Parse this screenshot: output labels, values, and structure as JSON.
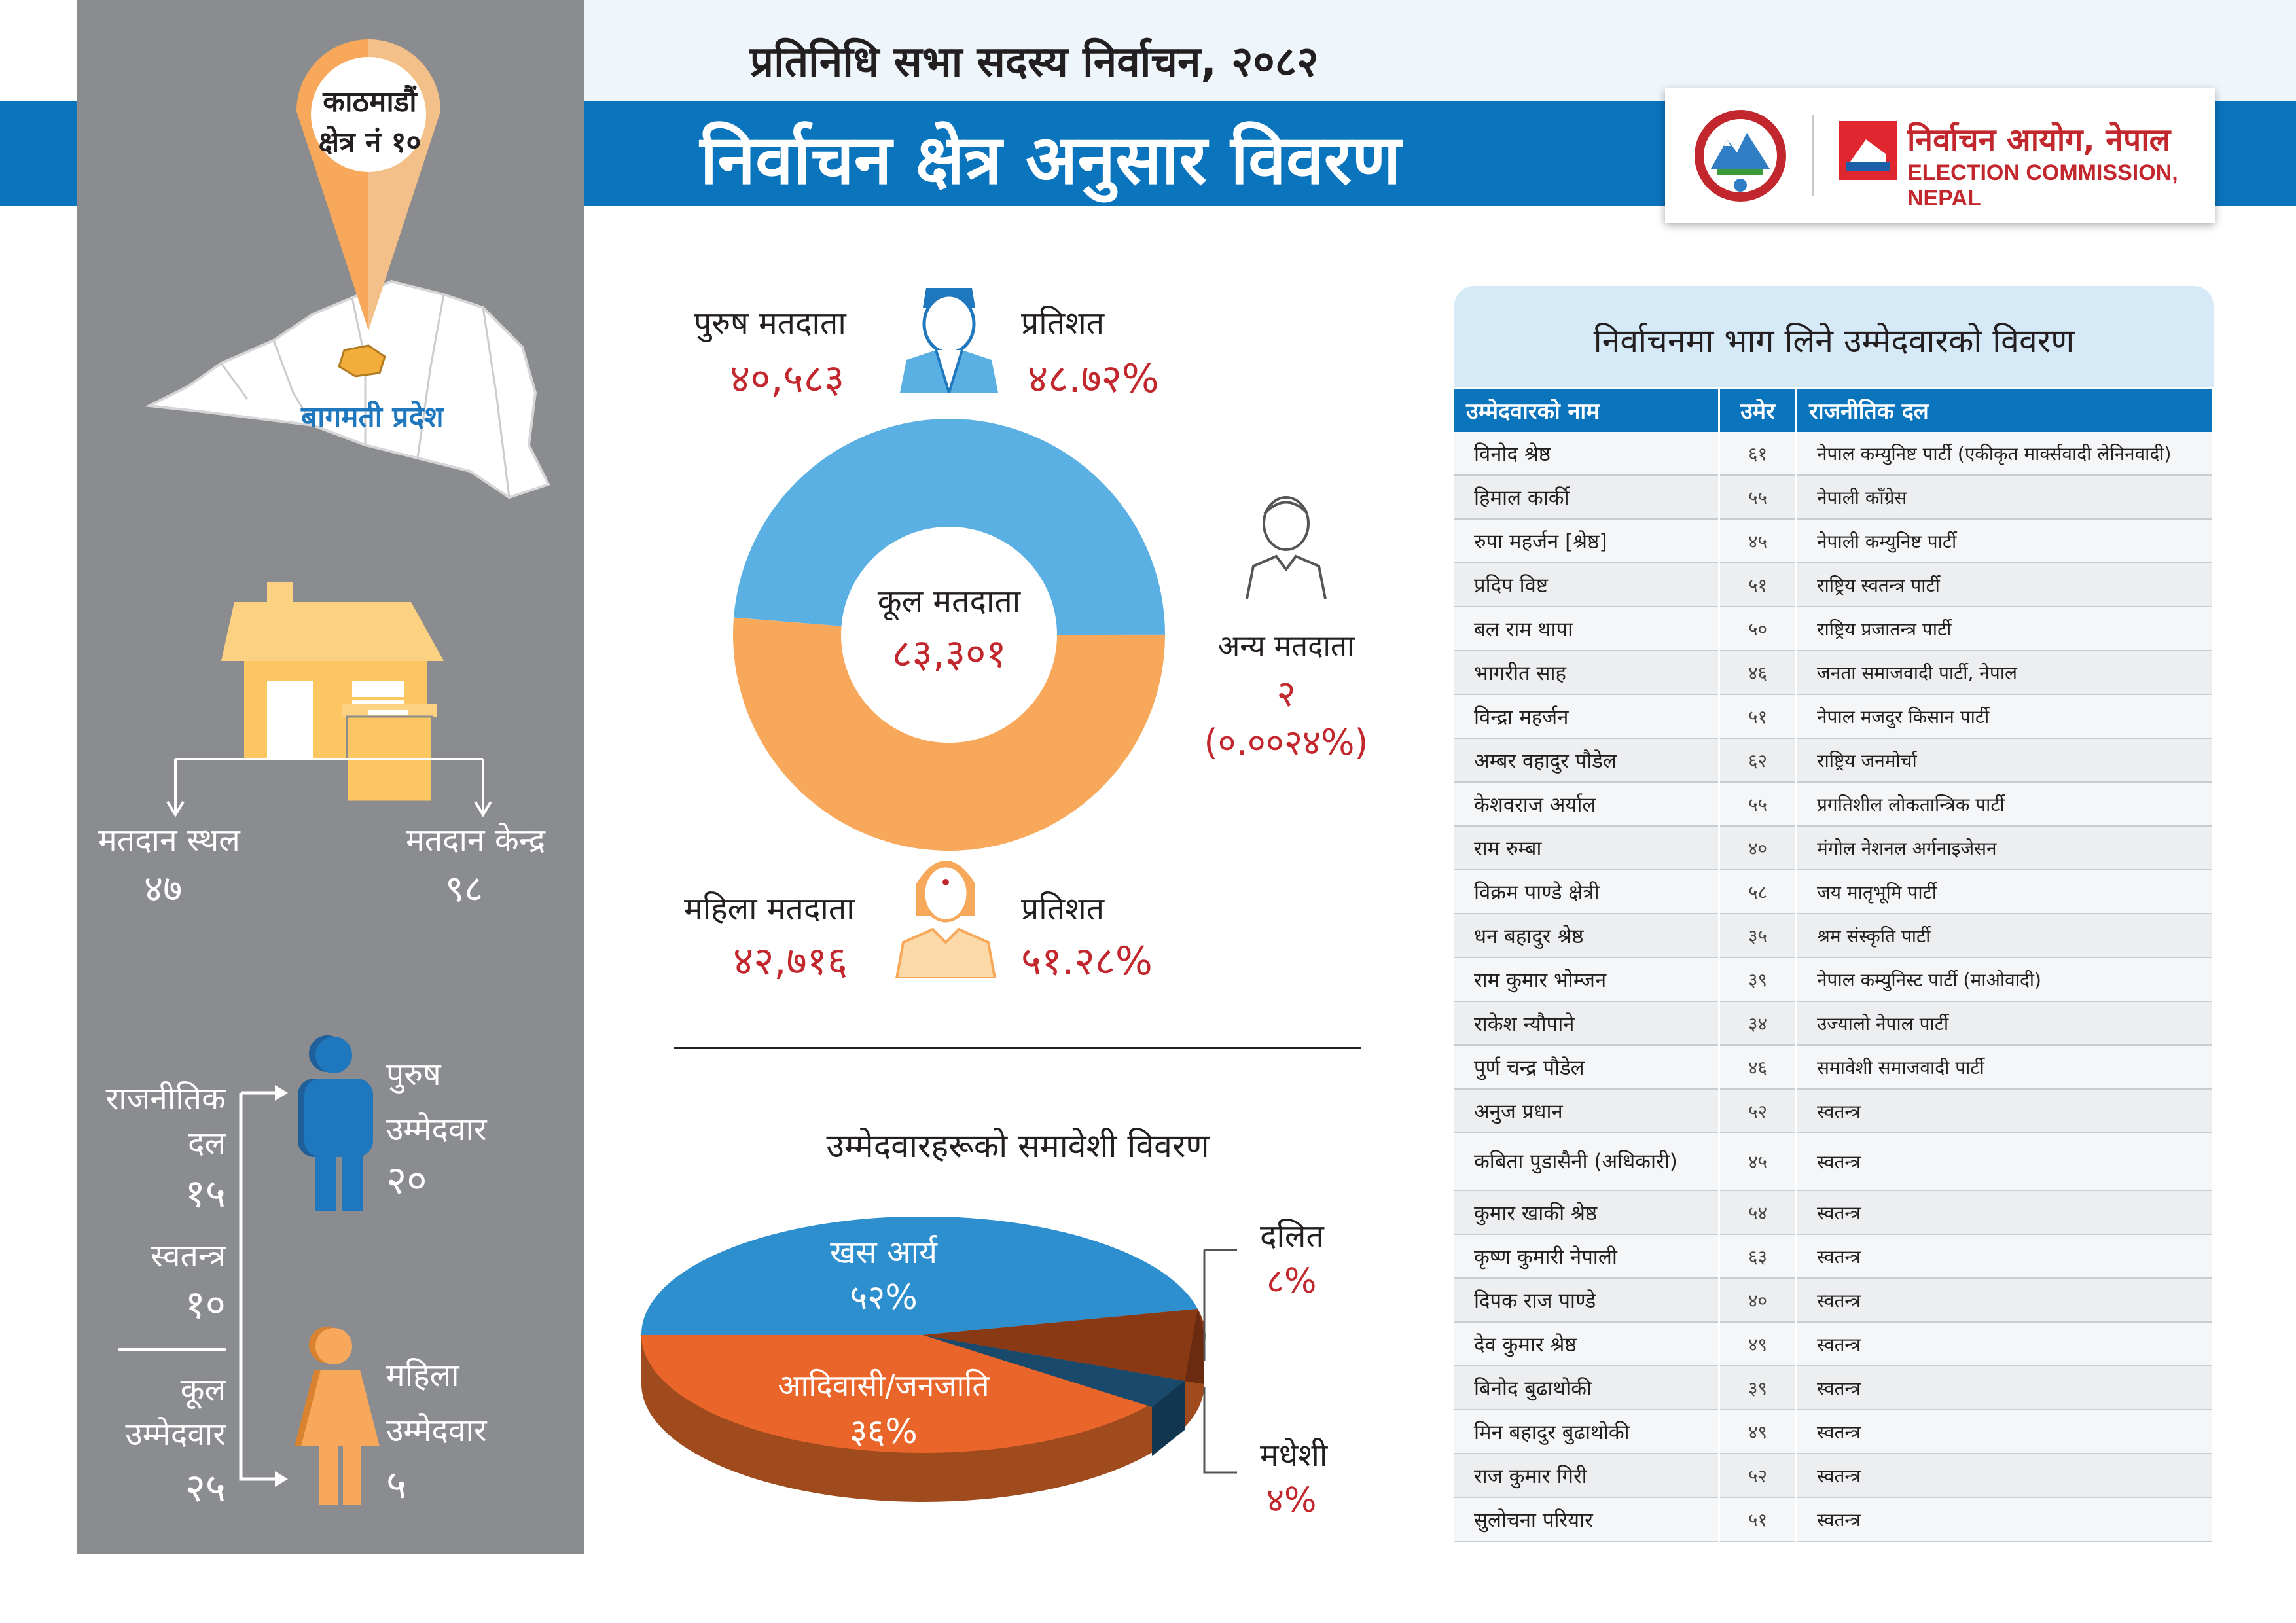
{
  "header": {
    "subtitle": "प्रतिनिधि सभा सदस्य निर्वाचन, २०८२",
    "title": "निर्वाचन क्षेत्र अनुसार विवरण",
    "org_nepali": "निर्वाचन आयोग, नेपाल",
    "org_english": "ELECTION COMMISSION, NEPAL"
  },
  "colors": {
    "blue": "#0a74bd",
    "light_blue": "#5aafe3",
    "orange": "#f7a85a",
    "grey": "#8a8c8f",
    "red_text": "#c2272d"
  },
  "constituency": {
    "line1": "काठमाडौं",
    "line2": "क्षेत्र नं १०",
    "province": "बागमती प्रदेश"
  },
  "polling": {
    "stations_label": "मतदान स्थल",
    "stations_value": "४७",
    "centers_label": "मतदान केन्द्र",
    "centers_value": "९८"
  },
  "candidates_summary": {
    "parties_label_1": "राजनीतिक",
    "parties_label_2": "दल",
    "parties_value": "१५",
    "independent_label": "स्वतन्त्र",
    "independent_value": "१०",
    "total_label_1": "कूल",
    "total_label_2": "उम्मेदवार",
    "total_value": "२५",
    "male_label_1": "पुरुष",
    "male_label_2": "उम्मेदवार",
    "male_value": "२०",
    "female_label_1": "महिला",
    "female_label_2": "उम्मेदवार",
    "female_value": "५"
  },
  "voters": {
    "male_label": "पुरुष मतदाता",
    "male_value": "४०,५८३",
    "male_pct_label": "प्रतिशत",
    "male_pct": "४८.७२%",
    "female_label": "महिला मतदाता",
    "female_value": "४२,७१६",
    "female_pct_label": "प्रतिशत",
    "female_pct": "५१.२८%",
    "total_label": "कूल मतदाता",
    "total_value": "८३,३०१",
    "other_label": "अन्य मतदाता",
    "other_value": "२",
    "other_pct": "(०.००२४%)"
  },
  "inclusion": {
    "title": "उम्मेदवारहरूको समावेशी विवरण",
    "khas_label": "खस आर्य",
    "khas_pct": "५२%",
    "janajati_label": "आदिवासी/जनजाति",
    "janajati_pct": "३६%",
    "dalit_label": "दलित",
    "dalit_pct": "८%",
    "madhesi_label": "मधेशी",
    "madhesi_pct": "४%"
  },
  "chart_data": [
    {
      "type": "pie",
      "categories": [
        "पुरुष मतदाता",
        "महिला मतदाता",
        "अन्य मतदाता"
      ],
      "values": [
        48.72,
        51.28,
        0.0024
      ]
    },
    {
      "type": "pie",
      "categories": [
        "खस आर्य",
        "आदिवासी/जनजाति",
        "दलित",
        "मधेशी"
      ],
      "values": [
        52,
        36,
        8,
        4
      ]
    }
  ],
  "candidate_table": {
    "title": "निर्वाचनमा भाग लिने उम्मेदवारको विवरण",
    "headers": [
      "उम्मेदवारको नाम",
      "उमेर",
      "राजनीतिक दल"
    ],
    "rows": [
      {
        "name": "विनोद श्रेष्ठ",
        "age": "६१",
        "party": "नेपाल कम्युनिष्ट पार्टी (एकीकृत मार्क्सवादी लेनिनवादी)"
      },
      {
        "name": "हिमाल कार्की",
        "age": "५५",
        "party": "नेपाली काँग्रेस"
      },
      {
        "name": "रुपा महर्जन [श्रेष्ठ]",
        "age": "४५",
        "party": "नेपाली कम्युनिष्ट पार्टी"
      },
      {
        "name": "प्रदिप विष्ट",
        "age": "५१",
        "party": "राष्ट्रिय स्वतन्त्र पार्टी"
      },
      {
        "name": "बल राम थापा",
        "age": "५०",
        "party": "राष्ट्रिय प्रजातन्त्र पार्टी"
      },
      {
        "name": "भागरीत साह",
        "age": "४६",
        "party": "जनता समाजवादी पार्टी, नेपाल"
      },
      {
        "name": "विन्द्रा महर्जन",
        "age": "५१",
        "party": "नेपाल मजदुर किसान पार्टी"
      },
      {
        "name": "अम्बर वहादुर पौडेल",
        "age": "६२",
        "party": "राष्ट्रिय जनमोर्चा"
      },
      {
        "name": "केशवराज अर्याल",
        "age": "५५",
        "party": "प्रगतिशील लोकतान्त्रिक पार्टी"
      },
      {
        "name": "राम रुम्बा",
        "age": "४०",
        "party": "मंगोल नेशनल अर्गनाइजेसन"
      },
      {
        "name": "विक्रम पाण्डे क्षेत्री",
        "age": "५८",
        "party": "जय मातृभूमि पार्टी"
      },
      {
        "name": "धन बहादुर श्रेष्ठ",
        "age": "३५",
        "party": "श्रम संस्कृति पार्टी"
      },
      {
        "name": "राम कुमार भोम्जन",
        "age": "३९",
        "party": "नेपाल कम्युनिस्ट पार्टी (माओवादी)"
      },
      {
        "name": "राकेश न्यौपाने",
        "age": "३४",
        "party": "उज्यालो नेपाल पार्टी"
      },
      {
        "name": "पुर्ण चन्द्र पौडेल",
        "age": "४६",
        "party": "समावेशी समाजवादी पार्टी"
      },
      {
        "name": "अनुज प्रधान",
        "age": "५२",
        "party": "स्वतन्त्र"
      },
      {
        "name": "कबिता पुडासैनी (अधिकारी)",
        "age": "४५",
        "party": "स्वतन्त्र"
      },
      {
        "name": "कुमार खाकी श्रेष्ठ",
        "age": "५४",
        "party": "स्वतन्त्र"
      },
      {
        "name": "कृष्ण कुमारी नेपाली",
        "age": "६३",
        "party": "स्वतन्त्र"
      },
      {
        "name": "दिपक राज पाण्डे",
        "age": "४०",
        "party": "स्वतन्त्र"
      },
      {
        "name": "देव कुमार श्रेष्ठ",
        "age": "४९",
        "party": "स्वतन्त्र"
      },
      {
        "name": "बिनोद बुढाथोकी",
        "age": "३९",
        "party": "स्वतन्त्र"
      },
      {
        "name": "मिन बहादुर बुढाथोकी",
        "age": "४९",
        "party": "स्वतन्त्र"
      },
      {
        "name": "राज कुमार गिरी",
        "age": "५२",
        "party": "स्वतन्त्र"
      },
      {
        "name": "सुलोचना परियार",
        "age": "५१",
        "party": "स्वतन्त्र"
      }
    ]
  }
}
